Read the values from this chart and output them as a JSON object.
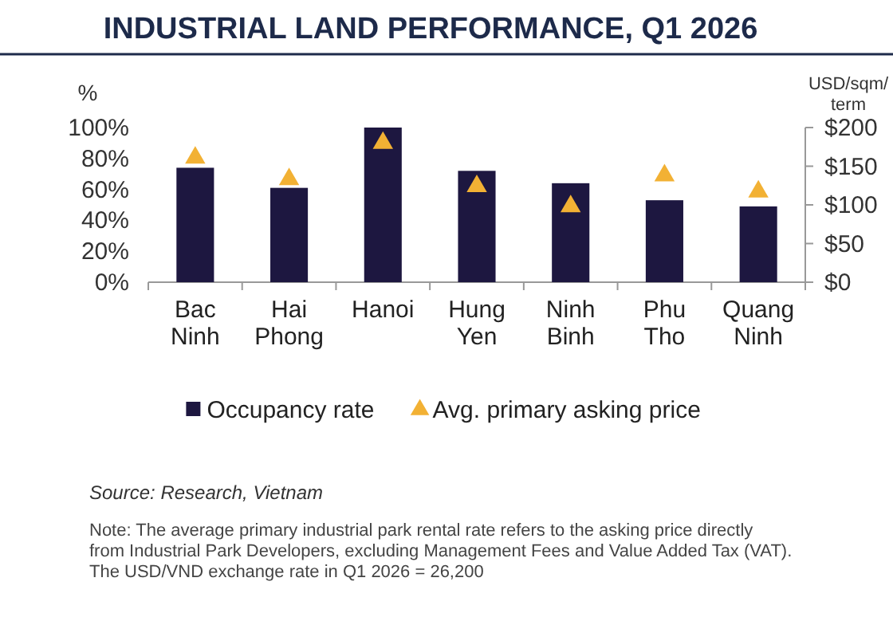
{
  "chart_data": {
    "type": "bar",
    "title": "INDUSTRIAL LAND PERFORMANCE, Q1 2026",
    "ylabel": "%",
    "y2label": "USD/sqm/ term",
    "categories": [
      "Bac Ninh",
      "Hai Phong",
      "Hanoi",
      "Hung Yen",
      "Ninh Binh",
      "Phu Tho",
      "Quang Ninh"
    ],
    "series": [
      {
        "name": "Occupancy rate",
        "color": "#1d1740",
        "values": [
          74,
          61,
          100,
          72,
          64,
          53,
          49
        ]
      },
      {
        "name": "Avg. primary asking price",
        "type": "scatter",
        "axis": "y2",
        "marker": "triangle",
        "color": "#f2b134",
        "values": [
          161,
          133,
          180,
          124,
          98,
          138,
          117
        ]
      }
    ],
    "ylim": [
      0,
      100
    ],
    "yticks": [
      {
        "value": 0,
        "label": "0%"
      },
      {
        "value": 20,
        "label": "20%"
      },
      {
        "value": 40,
        "label": "40%"
      },
      {
        "value": 60,
        "label": "60%"
      },
      {
        "value": 80,
        "label": "80%"
      },
      {
        "value": 100,
        "label": "100%"
      }
    ],
    "y2lim": [
      0,
      200
    ],
    "y2ticks": [
      {
        "value": 0,
        "label": "$0"
      },
      {
        "value": 50,
        "label": "$50"
      },
      {
        "value": 100,
        "label": "$100"
      },
      {
        "value": 150,
        "label": "$150"
      },
      {
        "value": 200,
        "label": "$200"
      }
    ],
    "legend": "bottom",
    "grid": false,
    "annotations": [
      "Source: Research, Vietnam",
      "Note: The average primary industrial park rental rate refers to the asking price directly from Industrial Park Developers, excluding Management Fees and Value Added Tax (VAT).",
      "The USD/VND exchange rate in Q1 2026 = 26,200"
    ]
  }
}
